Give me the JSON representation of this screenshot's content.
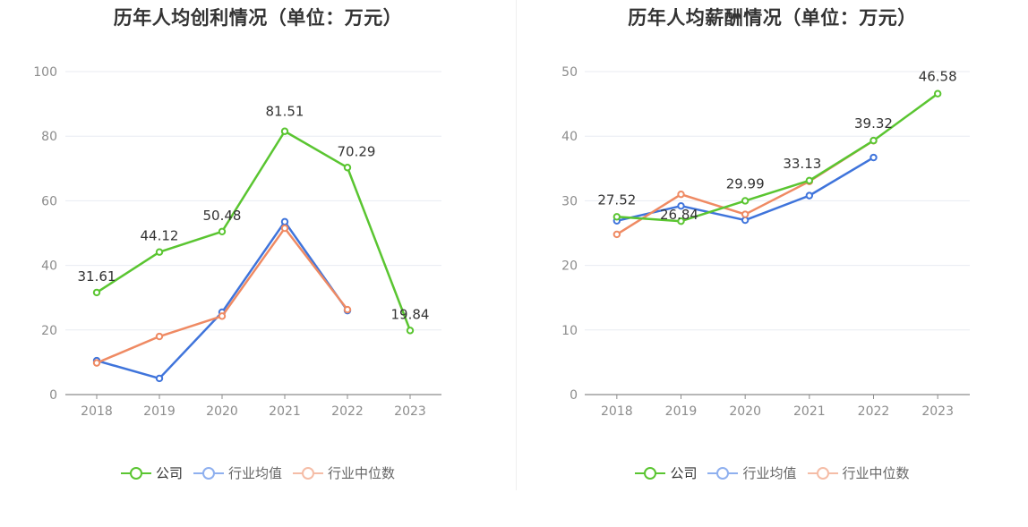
{
  "colors": {
    "company": "#5ac531",
    "industry_avg": "#3f74db",
    "industry_median": "#ef8a63",
    "grid": "#e8ebf2",
    "axis": "#8c8c8c",
    "tick_text": "#8c8c8c",
    "label_text": "#333333"
  },
  "legend": [
    {
      "name": "公司",
      "color_key": "company",
      "muted": false
    },
    {
      "name": "行业均值",
      "color_key": "industry_avg",
      "muted": true
    },
    {
      "name": "行业中位数",
      "color_key": "industry_median",
      "muted": true
    }
  ],
  "chart_data": [
    {
      "type": "line",
      "title": "历年人均创利情况（单位：万元）",
      "categories": [
        "2018",
        "2019",
        "2020",
        "2021",
        "2022",
        "2023"
      ],
      "ylim": [
        0,
        100
      ],
      "yticks": [
        0,
        20,
        40,
        60,
        80,
        100
      ],
      "grid": true,
      "legend_position": "bottom",
      "series": [
        {
          "name": "公司",
          "color_key": "company",
          "values": [
            31.61,
            44.12,
            50.48,
            81.51,
            70.29,
            19.84
          ],
          "labels": [
            "31.61",
            "44.12",
            "50.48",
            "81.51",
            "70.29",
            "19.84"
          ]
        },
        {
          "name": "行业均值",
          "color_key": "industry_avg",
          "values": [
            10.5,
            5.0,
            25.5,
            53.5,
            26.0,
            null
          ]
        },
        {
          "name": "行业中位数",
          "color_key": "industry_median",
          "values": [
            9.8,
            18.0,
            24.3,
            51.5,
            26.3,
            null
          ]
        }
      ]
    },
    {
      "type": "line",
      "title": "历年人均薪酬情况（单位：万元）",
      "categories": [
        "2018",
        "2019",
        "2020",
        "2021",
        "2022",
        "2023"
      ],
      "ylim": [
        0,
        50
      ],
      "yticks": [
        0,
        10,
        20,
        30,
        40,
        50
      ],
      "grid": true,
      "legend_position": "bottom",
      "series": [
        {
          "name": "公司",
          "color_key": "company",
          "values": [
            27.52,
            26.84,
            29.99,
            33.13,
            39.32,
            46.58
          ],
          "labels": [
            "27.52",
            "26.84",
            "29.99",
            "33.13",
            "39.32",
            "46.58"
          ]
        },
        {
          "name": "行业均值",
          "color_key": "industry_avg",
          "values": [
            26.9,
            29.2,
            27.0,
            30.8,
            36.7,
            null
          ]
        },
        {
          "name": "行业中位数",
          "color_key": "industry_median",
          "values": [
            24.8,
            31.0,
            27.9,
            33.0,
            39.3,
            null
          ]
        }
      ]
    }
  ]
}
